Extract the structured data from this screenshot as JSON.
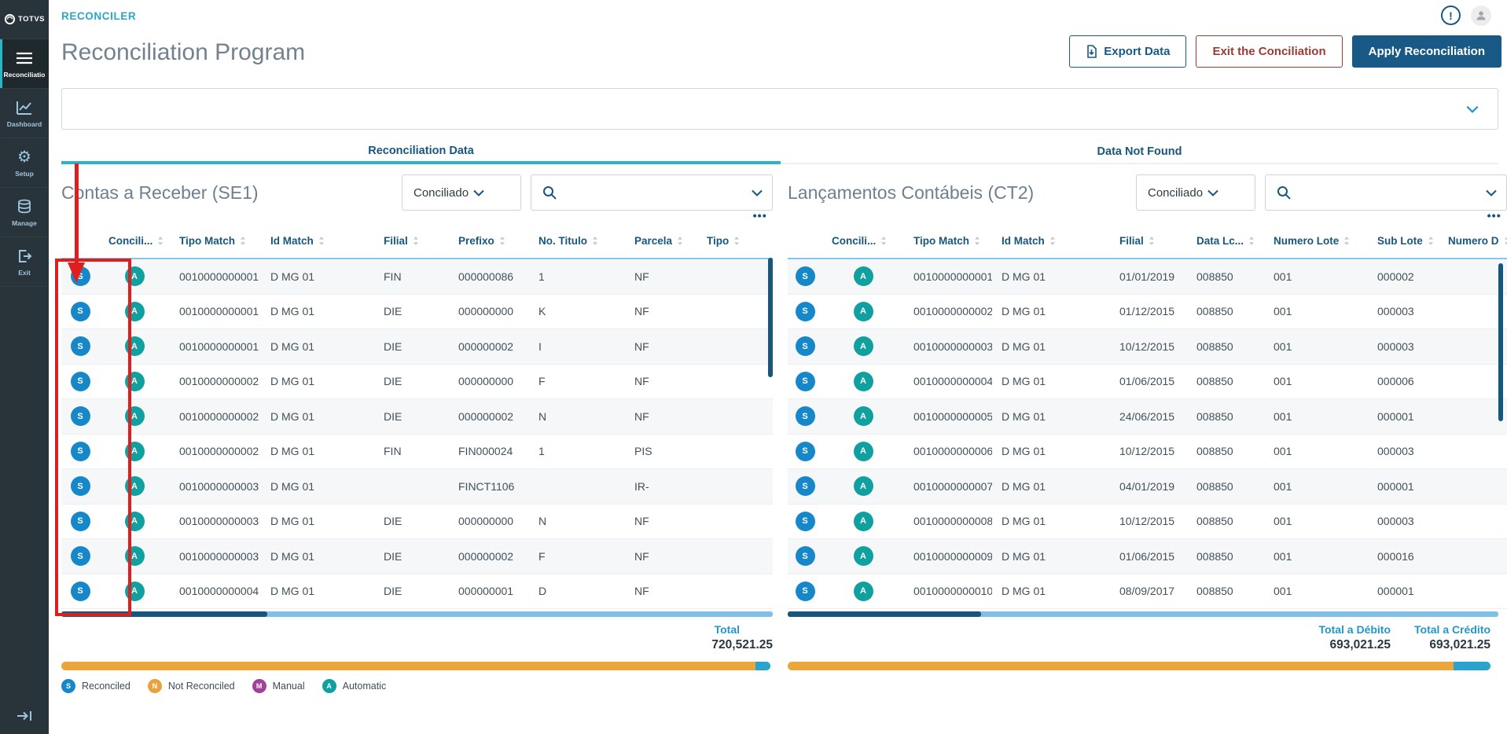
{
  "header": {
    "breadcrumb": "RECONCILER",
    "title": "Reconciliation Program",
    "buttons": {
      "export": "Export Data",
      "exit": "Exit the Conciliation",
      "apply": "Apply Reconciliation"
    },
    "notification_symbol": "!"
  },
  "sidebar": {
    "logo_text": "TOTVS",
    "items": [
      {
        "key": "reconciliation",
        "label": "Reconciliatio",
        "icon": "menu-list-icon",
        "active": true
      },
      {
        "key": "dashboard",
        "label": "Dashboard",
        "icon": "chart-icon",
        "active": false
      },
      {
        "key": "setup",
        "label": "Setup",
        "icon": "gear-icon",
        "active": false
      },
      {
        "key": "manage",
        "label": "Manage",
        "icon": "database-icon",
        "active": false
      },
      {
        "key": "exit",
        "label": "Exit",
        "icon": "exit-icon",
        "active": false
      }
    ]
  },
  "tabs": [
    {
      "label": "Reconciliation Data",
      "active": true
    },
    {
      "label": "Data Not Found",
      "active": false
    }
  ],
  "panels": {
    "left": {
      "title": "Contas a Receber (SE1)",
      "filter_value": "Conciliado",
      "columns": [
        "Concili...",
        "Tipo Match",
        "Id Match",
        "Filial",
        "Prefixo",
        "No. Titulo",
        "Parcela",
        "Tipo"
      ],
      "rows": [
        {
          "concili": "S",
          "tipo_match": "A",
          "cells": [
            "0010000000001",
            "D MG 01",
            "FIN",
            "000000086",
            "1",
            "NF"
          ]
        },
        {
          "concili": "S",
          "tipo_match": "A",
          "cells": [
            "0010000000001",
            "D MG 01",
            "DIE",
            "000000000",
            "K",
            "NF"
          ]
        },
        {
          "concili": "S",
          "tipo_match": "A",
          "cells": [
            "0010000000001",
            "D MG 01",
            "DIE",
            "000000002",
            "I",
            "NF"
          ]
        },
        {
          "concili": "S",
          "tipo_match": "A",
          "cells": [
            "0010000000002",
            "D MG 01",
            "DIE",
            "000000000",
            "F",
            "NF"
          ]
        },
        {
          "concili": "S",
          "tipo_match": "A",
          "cells": [
            "0010000000002",
            "D MG 01",
            "DIE",
            "000000002",
            "N",
            "NF"
          ]
        },
        {
          "concili": "S",
          "tipo_match": "A",
          "cells": [
            "0010000000002",
            "D MG 01",
            "FIN",
            "FIN000024",
            "1",
            "PIS"
          ]
        },
        {
          "concili": "S",
          "tipo_match": "A",
          "cells": [
            "0010000000003",
            "D MG 01",
            "",
            "FINCT1106",
            "",
            "IR-"
          ]
        },
        {
          "concili": "S",
          "tipo_match": "A",
          "cells": [
            "0010000000003",
            "D MG 01",
            "DIE",
            "000000000",
            "N",
            "NF"
          ]
        },
        {
          "concili": "S",
          "tipo_match": "A",
          "cells": [
            "0010000000003",
            "D MG 01",
            "DIE",
            "000000002",
            "F",
            "NF"
          ]
        },
        {
          "concili": "S",
          "tipo_match": "A",
          "cells": [
            "0010000000004",
            "D MG 01",
            "DIE",
            "000000001",
            "D",
            "NF"
          ]
        }
      ],
      "total_label": "Total",
      "total_value": "720,521.25"
    },
    "right": {
      "title": "Lançamentos Contábeis (CT2)",
      "filter_value": "Conciliado",
      "columns": [
        "Concili...",
        "Tipo Match",
        "Id Match",
        "Filial",
        "Data Lc...",
        "Numero Lote",
        "Sub Lote",
        "Numero D"
      ],
      "rows": [
        {
          "concili": "S",
          "tipo_match": "A",
          "cells": [
            "0010000000001",
            "D MG 01",
            "01/01/2019",
            "008850",
            "001",
            "000002"
          ]
        },
        {
          "concili": "S",
          "tipo_match": "A",
          "cells": [
            "0010000000002",
            "D MG 01",
            "01/12/2015",
            "008850",
            "001",
            "000003"
          ]
        },
        {
          "concili": "S",
          "tipo_match": "A",
          "cells": [
            "0010000000003",
            "D MG 01",
            "10/12/2015",
            "008850",
            "001",
            "000003"
          ]
        },
        {
          "concili": "S",
          "tipo_match": "A",
          "cells": [
            "0010000000004",
            "D MG 01",
            "01/06/2015",
            "008850",
            "001",
            "000006"
          ]
        },
        {
          "concili": "S",
          "tipo_match": "A",
          "cells": [
            "0010000000005",
            "D MG 01",
            "24/06/2015",
            "008850",
            "001",
            "000001"
          ]
        },
        {
          "concili": "S",
          "tipo_match": "A",
          "cells": [
            "0010000000006",
            "D MG 01",
            "10/12/2015",
            "008850",
            "001",
            "000003"
          ]
        },
        {
          "concili": "S",
          "tipo_match": "A",
          "cells": [
            "0010000000007",
            "D MG 01",
            "04/01/2019",
            "008850",
            "001",
            "000001"
          ]
        },
        {
          "concili": "S",
          "tipo_match": "A",
          "cells": [
            "0010000000008",
            "D MG 01",
            "10/12/2015",
            "008850",
            "001",
            "000003"
          ]
        },
        {
          "concili": "S",
          "tipo_match": "A",
          "cells": [
            "0010000000009",
            "D MG 01",
            "01/06/2015",
            "008850",
            "001",
            "000016"
          ]
        },
        {
          "concili": "S",
          "tipo_match": "A",
          "cells": [
            "0010000000010",
            "D MG 01",
            "08/09/2017",
            "008850",
            "001",
            "000001"
          ]
        }
      ],
      "total_debit_label": "Total a Débito",
      "total_debit_value": "693,021.25",
      "total_credit_label": "Total a Crédito",
      "total_credit_value": "693,021.25"
    }
  },
  "legend": {
    "items": [
      {
        "badge": "S",
        "label": "Reconciled"
      },
      {
        "badge": "N",
        "label": "Not Reconciled"
      },
      {
        "badge": "M",
        "label": "Manual"
      },
      {
        "badge": "A",
        "label": "Automatic"
      }
    ]
  },
  "badge_colors": {
    "S": "#1687c8",
    "A": "#11a0a0",
    "N": "#e8a33d",
    "M": "#a2409a"
  },
  "colors": {
    "accent_teal": "#2ab5c6",
    "primary_blue": "#185a85",
    "danger_red": "#9b3b33",
    "progress_orange": "#e9a63c",
    "progress_blue": "#2aa3cf",
    "scrollbar_blue": "#17567d",
    "annotation_red": "#e01e1e"
  }
}
